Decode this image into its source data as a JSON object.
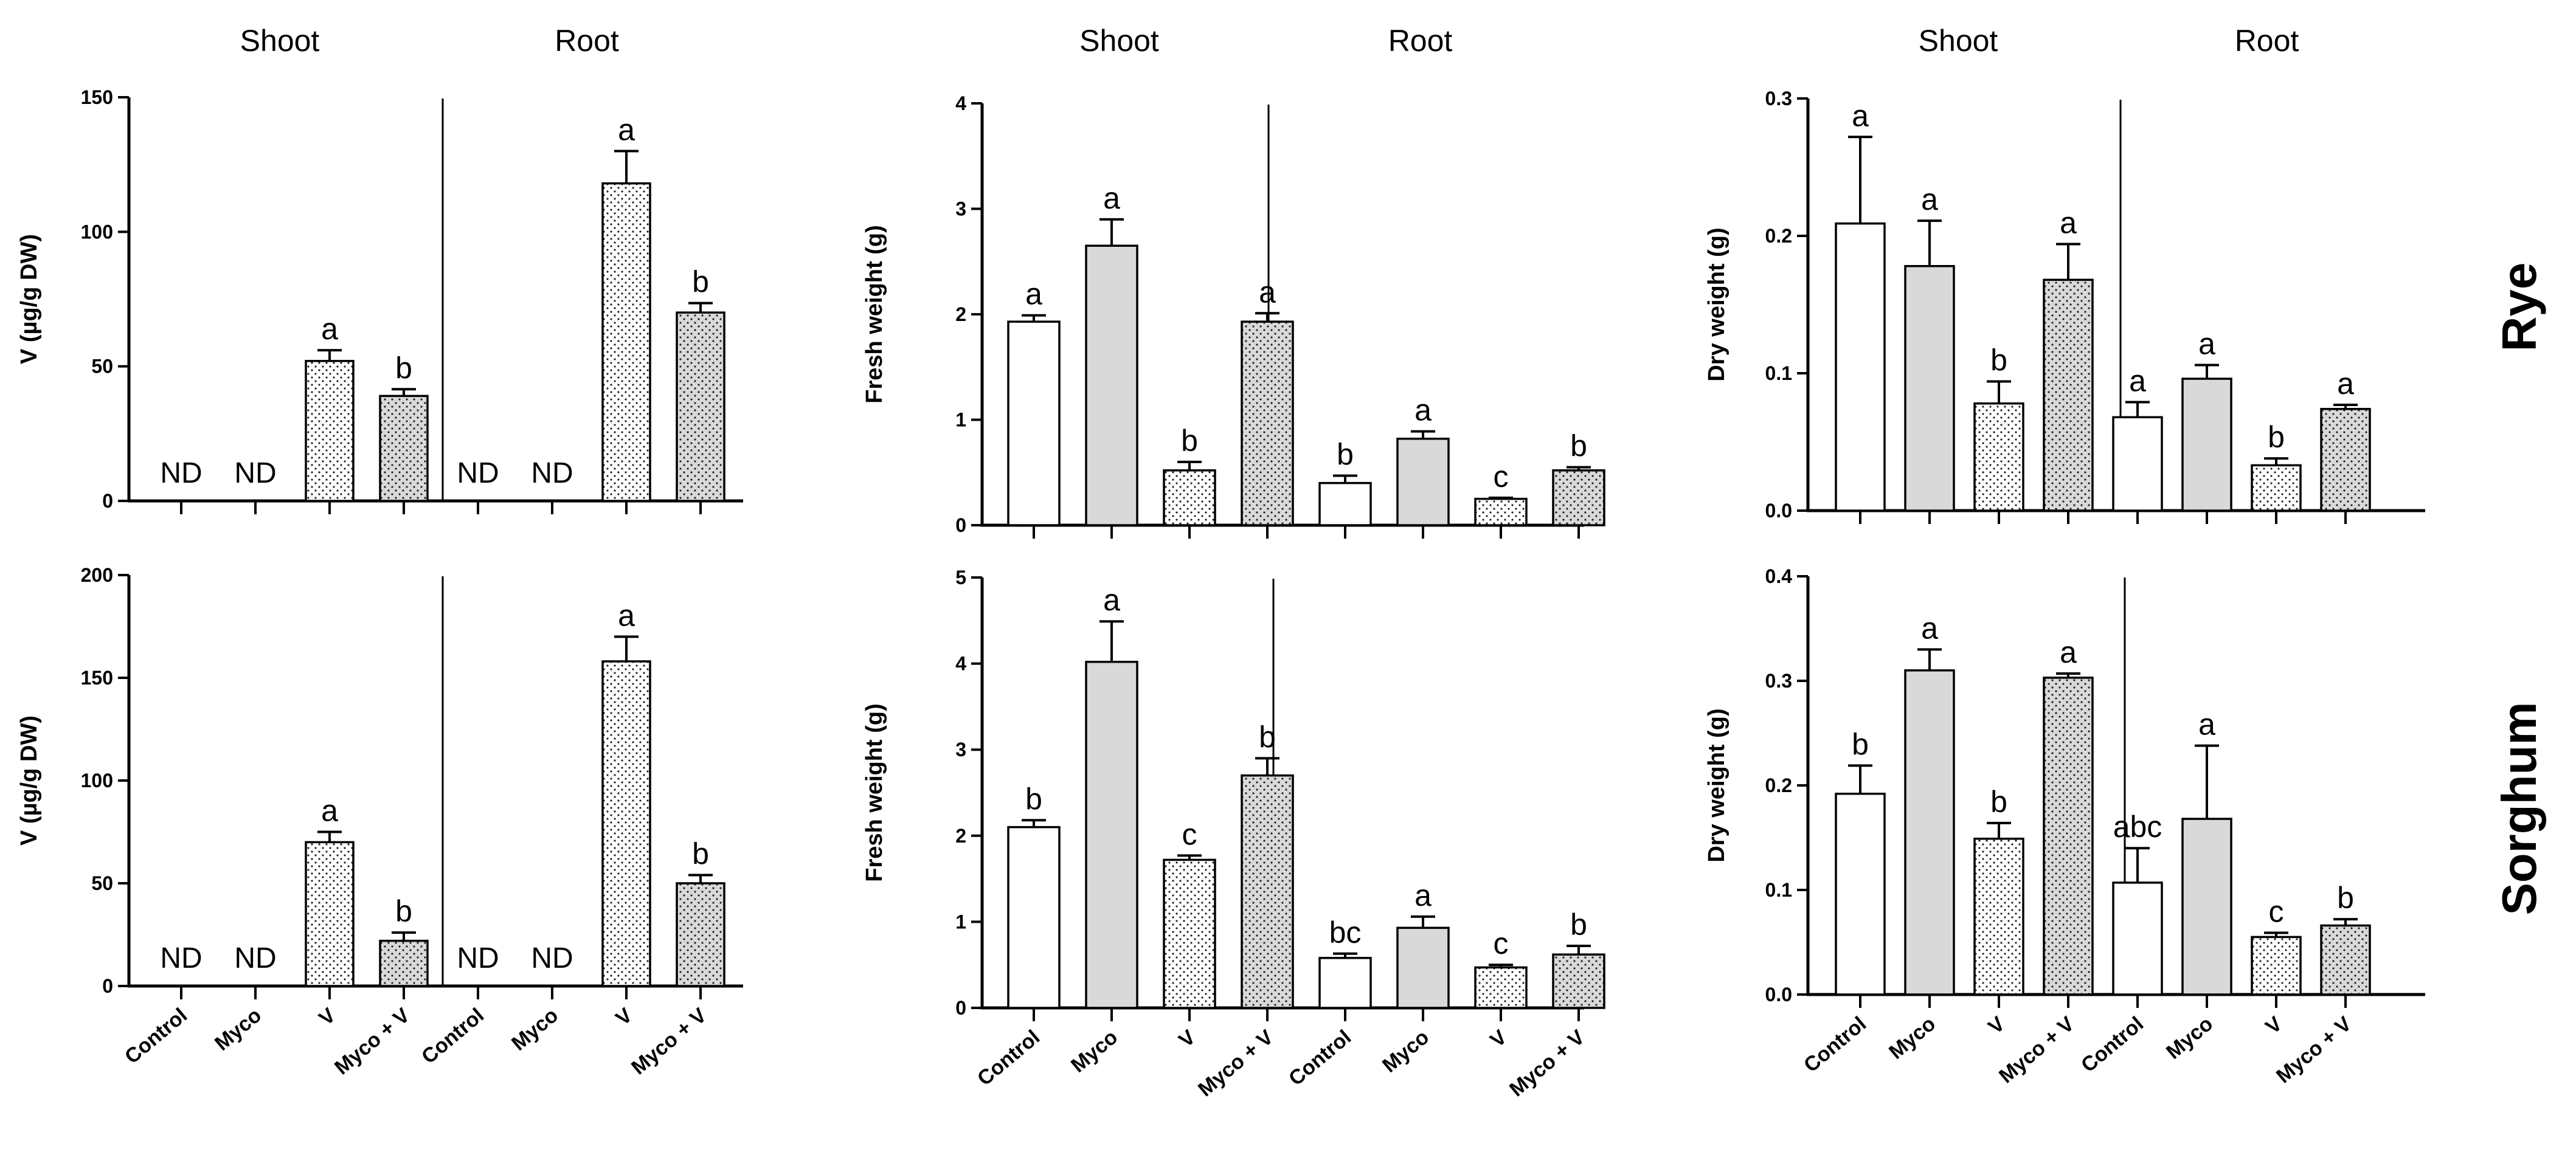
{
  "chart_data": [
    {
      "type": "bar",
      "id": "v-rye",
      "ylabel": "V (µg/g DW)",
      "ylim": [
        0,
        150
      ],
      "yticks": [
        "0",
        "50",
        "100",
        "150"
      ],
      "group_labels": [
        "Shoot",
        "Root"
      ],
      "categories": [
        "Control",
        "Myco",
        "V",
        "Myco + V",
        "Control",
        "Myco",
        "V",
        "Myco + V"
      ],
      "values": [
        null,
        null,
        52,
        39,
        null,
        null,
        118,
        70
      ],
      "errors": [
        0,
        0,
        4,
        2.5,
        0,
        0,
        12,
        3.5
      ],
      "letters": [
        "ND",
        "ND",
        "a",
        "b",
        "ND",
        "ND",
        "a",
        "b"
      ]
    },
    {
      "type": "bar",
      "id": "fw-rye",
      "ylabel": "Fresh weight (g)",
      "ylim": [
        0,
        4
      ],
      "yticks": [
        "0",
        "1",
        "2",
        "3",
        "4"
      ],
      "group_labels": [
        "Shoot",
        "Root"
      ],
      "categories": [
        "Control",
        "Myco",
        "V",
        "Myco + V",
        "Control",
        "Myco",
        "V",
        "Myco + V"
      ],
      "values": [
        1.93,
        2.65,
        0.52,
        1.93,
        0.4,
        0.82,
        0.25,
        0.52
      ],
      "errors": [
        0.06,
        0.25,
        0.08,
        0.08,
        0.07,
        0.07,
        0.01,
        0.03
      ],
      "letters": [
        "a",
        "a",
        "b",
        "a",
        "b",
        "a",
        "c",
        "b"
      ]
    },
    {
      "type": "bar",
      "id": "dw-rye",
      "ylabel": "Dry weight (g)",
      "ylim": [
        0,
        0.3
      ],
      "yticks": [
        "0.0",
        "0.1",
        "0.2",
        "0.3"
      ],
      "group_labels": [
        "Shoot",
        "Root"
      ],
      "categories": [
        "Control",
        "Myco",
        "V",
        "Myco + V",
        "Control",
        "Myco",
        "V",
        "Myco + V"
      ],
      "values": [
        0.209,
        0.178,
        0.078,
        0.168,
        0.068,
        0.096,
        0.033,
        0.074
      ],
      "errors": [
        0.063,
        0.033,
        0.016,
        0.026,
        0.011,
        0.01,
        0.005,
        0.003
      ],
      "letters": [
        "a",
        "a",
        "b",
        "a",
        "a",
        "a",
        "b",
        "a"
      ]
    },
    {
      "type": "bar",
      "id": "v-sorghum",
      "ylabel": "V (µg/g DW)",
      "ylim": [
        0,
        200
      ],
      "yticks": [
        "0",
        "50",
        "100",
        "150",
        "200"
      ],
      "group_labels": [
        "Shoot",
        "Root"
      ],
      "categories": [
        "Control",
        "Myco",
        "V",
        "Myco + V",
        "Control",
        "Myco",
        "V",
        "Myco + V"
      ],
      "values": [
        null,
        null,
        70,
        22,
        null,
        null,
        158,
        50
      ],
      "errors": [
        0,
        0,
        5,
        4,
        0,
        0,
        12,
        4
      ],
      "letters": [
        "ND",
        "ND",
        "a",
        "b",
        "ND",
        "ND",
        "a",
        "b"
      ]
    },
    {
      "type": "bar",
      "id": "fw-sorghum",
      "ylabel": "Fresh weight (g)",
      "ylim": [
        0,
        5
      ],
      "yticks": [
        "0",
        "1",
        "2",
        "3",
        "4",
        "5"
      ],
      "group_labels": [
        "Shoot",
        "Root"
      ],
      "categories": [
        "Control",
        "Myco",
        "V",
        "Myco + V",
        "Control",
        "Myco",
        "V",
        "Myco + V"
      ],
      "values": [
        2.1,
        4.02,
        1.72,
        2.7,
        0.58,
        0.93,
        0.47,
        0.62
      ],
      "errors": [
        0.08,
        0.47,
        0.05,
        0.2,
        0.05,
        0.13,
        0.03,
        0.1
      ],
      "letters": [
        "b",
        "a",
        "c",
        "b",
        "bc",
        "a",
        "c",
        "b"
      ]
    },
    {
      "type": "bar",
      "id": "dw-sorghum",
      "ylabel": "Dry weight (g)",
      "ylim": [
        0,
        0.4
      ],
      "yticks": [
        "0.0",
        "0.1",
        "0.2",
        "0.3",
        "0.4"
      ],
      "group_labels": [
        "Shoot",
        "Root"
      ],
      "categories": [
        "Control",
        "Myco",
        "V",
        "Myco + V",
        "Control",
        "Myco",
        "V",
        "Myco + V"
      ],
      "values": [
        0.192,
        0.31,
        0.149,
        0.303,
        0.107,
        0.168,
        0.055,
        0.066
      ],
      "errors": [
        0.027,
        0.02,
        0.015,
        0.004,
        0.033,
        0.07,
        0.004,
        0.006
      ],
      "letters": [
        "b",
        "a",
        "b",
        "a",
        "abc",
        "a",
        "c",
        "b"
      ]
    }
  ],
  "row_labels": [
    "Rye",
    "Sorghum"
  ],
  "bar_fills": [
    "#ffffff",
    "#d9d9d9",
    "url(#dots-white)",
    "url(#dots-gray)"
  ],
  "colors": {
    "axis": "#000000",
    "gray_fill": "#d9d9d9"
  }
}
